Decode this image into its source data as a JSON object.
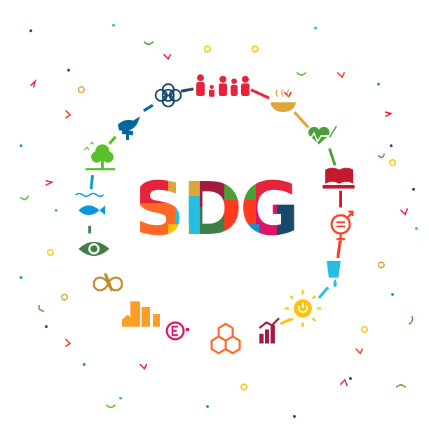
{
  "title": "SDG"
}
